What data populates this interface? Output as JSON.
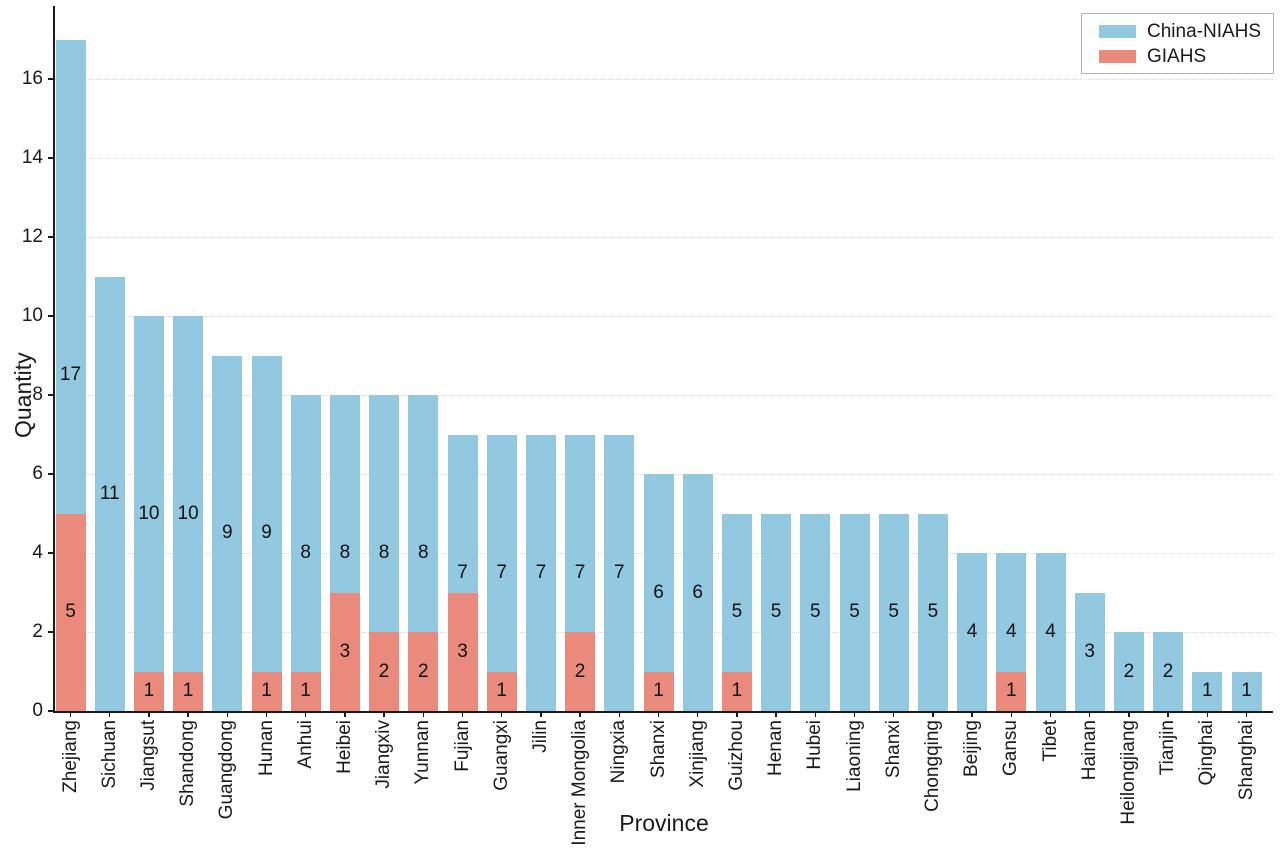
{
  "chart_data": {
    "type": "bar",
    "mode": "overlay",
    "title": "",
    "xlabel": "Province",
    "ylabel": "Quantity",
    "ylim": [
      0,
      17.8
    ],
    "yticks": [
      0,
      2,
      4,
      6,
      8,
      10,
      12,
      14,
      16
    ],
    "grid": "horizontal-dotted",
    "legend_position": "upper-right",
    "bar_value_labels": true,
    "categories": [
      "Zhejiang",
      "Sichuan",
      "Jiangsut",
      "Shandong",
      "Guangdong",
      "Hunan",
      "Anhui",
      "Heibei",
      "Jiangxiv",
      "Yunnan",
      "Fujian",
      "Guangxi",
      "Jilin",
      "Inner Mongolia",
      "Ningxia",
      "Shanxi",
      "Xinjiang",
      "Guizhou",
      "Henan",
      "Hubei",
      "Liaoning",
      "Shanxi",
      "Chongqing",
      "Beijing",
      "Gansu",
      "Tibet",
      "Hainan",
      "Heilongjiang",
      "Tianjin",
      "Qinghai",
      "Shanghai"
    ],
    "series": [
      {
        "name": "China-NIAHS",
        "color": "#92C8E0",
        "values": [
          17,
          11,
          10,
          10,
          9,
          9,
          8,
          8,
          8,
          8,
          7,
          7,
          7,
          7,
          7,
          6,
          6,
          5,
          5,
          5,
          5,
          5,
          5,
          4,
          4,
          4,
          3,
          2,
          2,
          1,
          1
        ]
      },
      {
        "name": "GIAHS",
        "color": "#E98A7D",
        "values": [
          5,
          0,
          1,
          1,
          0,
          1,
          1,
          3,
          2,
          2,
          3,
          1,
          0,
          2,
          0,
          1,
          0,
          1,
          0,
          0,
          0,
          0,
          0,
          0,
          1,
          0,
          0,
          0,
          0,
          0,
          0
        ]
      }
    ]
  },
  "colors": {
    "axis": "#1a1a1a",
    "gridline": "#d9d9d9",
    "label_text": "#111111",
    "legend_border": "#b3b3b3",
    "background": "#ffffff"
  }
}
